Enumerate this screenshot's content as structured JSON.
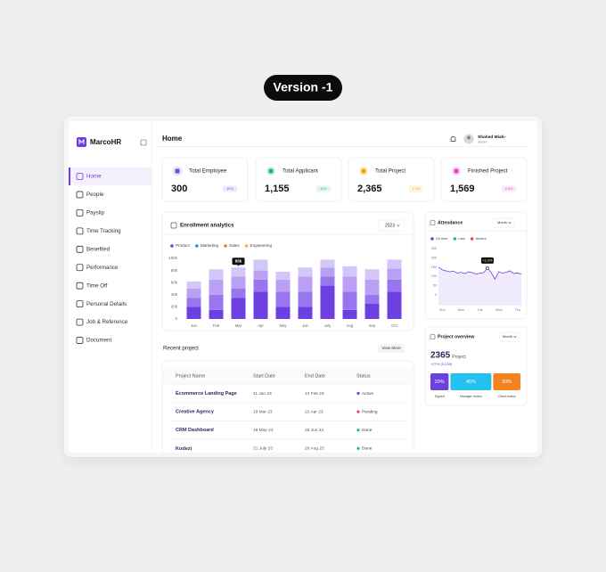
{
  "badge": "Version -1",
  "sidebar": {
    "brand": "MarcoHR",
    "active": 0,
    "nav": [
      "Home",
      "People",
      "Payslip",
      "Time Tracking",
      "Benefited",
      "Performance",
      "Time Off",
      "Personal Details",
      "Job & Reference",
      "Document"
    ]
  },
  "header": {
    "title": "Home",
    "user": "Shahed Miah",
    "role": "admin"
  },
  "stats": [
    {
      "label": "Total Employee",
      "value": "300",
      "change": "10%",
      "color": "#7b3fe4"
    },
    {
      "label": "Total Applicant",
      "value": "1,155",
      "change": "10%",
      "color": "#22b573"
    },
    {
      "label": "Total Project",
      "value": "2,365",
      "change": "1.2%",
      "color": "#f59e0b"
    },
    {
      "label": "Finished Project",
      "value": "1,569",
      "change": "2.5%",
      "color": "#e040c8"
    }
  ],
  "chart_data": [
    {
      "type": "bar",
      "stacked": true,
      "title": "Enrollment analytics",
      "selector": "2023",
      "categories": [
        "Jan",
        "Feb",
        "Mar",
        "Apr",
        "May",
        "Jun",
        "July",
        "Aug",
        "Sep",
        "Oct"
      ],
      "series": [
        {
          "name": "Product",
          "color": "#6b3fe0",
          "legend_color": "#6b3fe0",
          "values": [
            20000,
            15000,
            35000,
            45000,
            20000,
            20000,
            55000,
            15000,
            25000,
            45000
          ]
        },
        {
          "name": "Marketing",
          "color": "#9a76ee",
          "legend_color": "#3b82f6",
          "values": [
            15000,
            25000,
            15000,
            20000,
            25000,
            25000,
            15000,
            30000,
            15000,
            20000
          ]
        },
        {
          "name": "Sales",
          "color": "#b9a0f4",
          "legend_color": "#f97316",
          "values": [
            15000,
            25000,
            20000,
            15000,
            20000,
            25000,
            15000,
            25000,
            25000,
            18000
          ]
        },
        {
          "name": "Engineering",
          "color": "#d3c6f9",
          "legend_color": "#f5b43c",
          "values": [
            12000,
            17000,
            15000,
            18000,
            13000,
            15000,
            13000,
            17000,
            17000,
            15000
          ]
        }
      ],
      "ylim": [
        0,
        100000
      ],
      "yticks": [
        0,
        {
          "value": 20000,
          "label": "20k"
        },
        {
          "value": 40000,
          "label": "40k"
        },
        {
          "value": 60000,
          "label": "60k"
        },
        {
          "value": 80000,
          "label": "80k"
        },
        {
          "value": 100000,
          "label": "100k"
        }
      ],
      "annotation": {
        "category": "Mar",
        "value": 85000,
        "label": "85k"
      }
    },
    {
      "type": "line",
      "title": "Attendance",
      "selector": "Month",
      "legend": [
        {
          "name": "On time",
          "color": "#6b3fe0"
        },
        {
          "name": "Late",
          "color": "#22c55e"
        },
        {
          "name": "Absent",
          "color": "#ef4444"
        }
      ],
      "x": [
        -0.2,
        0,
        0.2,
        0.4,
        0.6,
        0.8,
        1,
        1.2,
        1.4,
        1.6,
        1.8,
        2,
        2.2,
        2.4,
        2.6,
        2.8,
        3,
        3.2,
        3.4,
        3.6,
        3.8,
        4,
        4.2
      ],
      "series": [
        {
          "color": "#6b3fe0",
          "values": [
            150,
            135,
            130,
            125,
            128,
            118,
            122,
            115,
            125,
            120,
            112,
            118,
            120,
            145,
            120,
            85,
            125,
            118,
            122,
            130,
            115,
            118,
            112
          ]
        }
      ],
      "xlim": [
        -0.2,
        4.2
      ],
      "xticks": [
        {
          "value": 0,
          "label": "Sun"
        },
        {
          "value": 1,
          "label": "Mon"
        },
        {
          "value": 2,
          "label": "Tue"
        },
        {
          "value": 3,
          "label": "Wed"
        },
        {
          "value": 4,
          "label": "Thu"
        }
      ],
      "ylim": [
        0,
        250
      ],
      "yticks": [
        0,
        50,
        100,
        150,
        200,
        250
      ],
      "annotation": {
        "x": 2.4,
        "value": 145,
        "label": "+1.2%"
      }
    },
    {
      "type": "stacked-bar-h",
      "title": "Project overview",
      "selector": "Month",
      "total": "2365",
      "total_label": "Project",
      "change": "+27% (5,236)",
      "categories": [
        "Signed",
        "Manager review",
        "Client review"
      ],
      "values": [
        20,
        45,
        30
      ],
      "value_labels": [
        "20%",
        "45%",
        "30%"
      ],
      "colors": [
        "#6b3fe0",
        "#22c1ee",
        "#f58220"
      ]
    }
  ],
  "recent": {
    "title": "Recent project",
    "action": "View More",
    "columns": [
      "Project Name",
      "Start Date",
      "End Date",
      "Status"
    ],
    "rows": [
      {
        "name": "Ecommerce Landing Page",
        "start": "11 Jan 23",
        "end": "12 Feb 23",
        "status": "Active",
        "status_color": "#6b3fe0"
      },
      {
        "name": "Creative Agency",
        "start": "18 Mar 23",
        "end": "22 Apr 23",
        "status": "Pending",
        "status_color": "#ef4444"
      },
      {
        "name": "CRM Dashboard",
        "start": "18 May 23",
        "end": "25 Jun 23",
        "status": "Done",
        "status_color": "#22b573"
      },
      {
        "name": "Kodezi",
        "start": "21 July 23",
        "end": "29 Aug 23",
        "status": "Done",
        "status_color": "#22b573"
      }
    ]
  }
}
